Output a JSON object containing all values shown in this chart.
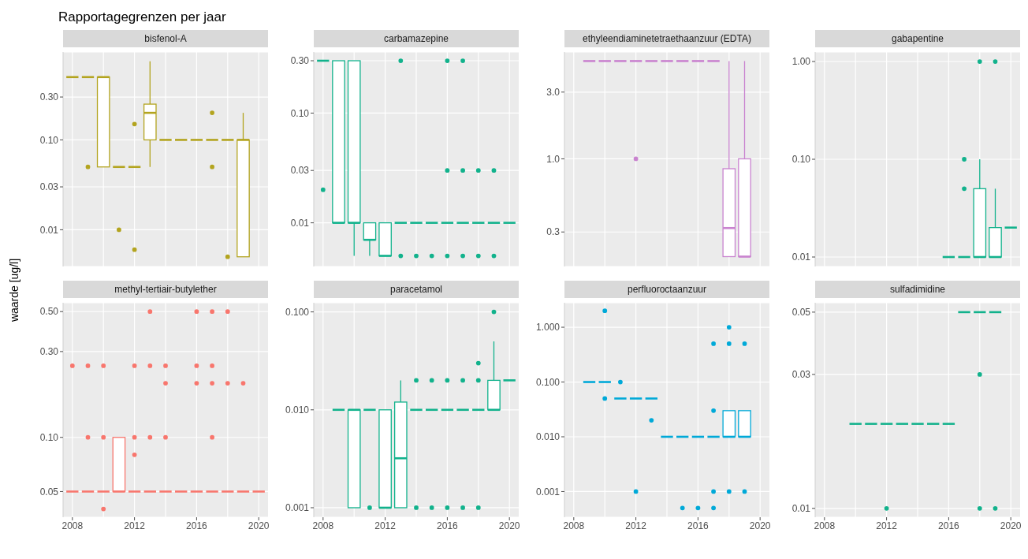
{
  "chart_data": [
    {
      "type": "box",
      "title": "bisfenol-A",
      "annotations": [
        "Rapportagegrenzen per jaar"
      ],
      "ylabel": "waarde [ug/l]",
      "color": "#b3a41f",
      "log": true,
      "grid": true,
      "tick_labels": "y",
      "ylim": [
        0.0039,
        0.95
      ],
      "yticks": [
        0.01,
        0.03,
        {
          "value": 0.1,
          "label": "0.10"
        },
        {
          "value": 0.3,
          "label": "0.30"
        }
      ],
      "categories": [
        "2008",
        null,
        null,
        null,
        "2012",
        null,
        null,
        null,
        "2016",
        null,
        null,
        null,
        "2020"
      ],
      "boxes": [
        {
          "low": 0.5,
          "q1": 0.5,
          "median": 0.5,
          "q3": 0.5,
          "high": 0.5
        },
        {
          "low": 0.5,
          "q1": 0.5,
          "median": 0.5,
          "q3": 0.5,
          "high": 0.5,
          "outliers": [
            0.05
          ]
        },
        {
          "low": 0.05,
          "q1": 0.05,
          "median": 0.5,
          "q3": 0.5,
          "high": 0.5
        },
        {
          "low": 0.05,
          "q1": 0.05,
          "median": 0.05,
          "q3": 0.05,
          "high": 0.05,
          "outliers": [
            0.01
          ]
        },
        {
          "low": 0.05,
          "q1": 0.05,
          "median": 0.05,
          "q3": 0.05,
          "high": 0.05,
          "outliers": [
            0.15,
            0.006
          ]
        },
        {
          "low": 0.05,
          "q1": 0.1,
          "median": 0.2,
          "q3": 0.25,
          "high": 0.75
        },
        {
          "low": 0.1,
          "q1": 0.1,
          "median": 0.1,
          "q3": 0.1,
          "high": 0.1
        },
        {
          "low": 0.1,
          "q1": 0.1,
          "median": 0.1,
          "q3": 0.1,
          "high": 0.1
        },
        {
          "low": 0.1,
          "q1": 0.1,
          "median": 0.1,
          "q3": 0.1,
          "high": 0.1
        },
        {
          "low": 0.1,
          "q1": 0.1,
          "median": 0.1,
          "q3": 0.1,
          "high": 0.1,
          "outliers": [
            0.2,
            0.05
          ]
        },
        {
          "low": 0.1,
          "q1": 0.1,
          "median": 0.1,
          "q3": 0.1,
          "high": 0.1,
          "outliers": [
            0.005
          ]
        },
        {
          "low": 0.005,
          "q1": 0.005,
          "median": 0.1,
          "q3": 0.1,
          "high": 0.2
        },
        null
      ]
    },
    {
      "type": "box",
      "title": "carbamazepine",
      "color": "#12b28c",
      "log": true,
      "grid": true,
      "tick_labels": "y",
      "ylim": [
        0.004,
        0.36
      ],
      "yticks": [
        0.01,
        0.03,
        {
          "value": 0.1,
          "label": "0.10"
        },
        {
          "value": 0.3,
          "label": "0.30"
        }
      ],
      "categories": [
        "2008",
        null,
        null,
        null,
        "2012",
        null,
        null,
        null,
        "2016",
        null,
        null,
        null,
        "2020"
      ],
      "boxes": [
        {
          "low": 0.3,
          "q1": 0.3,
          "median": 0.3,
          "q3": 0.3,
          "high": 0.3,
          "outliers": [
            0.02
          ]
        },
        {
          "low": 0.01,
          "q1": 0.01,
          "median": 0.01,
          "q3": 0.3,
          "high": 0.3
        },
        {
          "low": 0.005,
          "q1": 0.01,
          "median": 0.01,
          "q3": 0.3,
          "high": 0.3
        },
        {
          "low": 0.005,
          "q1": 0.007,
          "median": 0.007,
          "q3": 0.01,
          "high": 0.01
        },
        {
          "low": 0.005,
          "q1": 0.005,
          "median": 0.005,
          "q3": 0.01,
          "high": 0.01
        },
        {
          "low": 0.01,
          "q1": 0.01,
          "median": 0.01,
          "q3": 0.01,
          "high": 0.01,
          "outliers": [
            0.3,
            0.005
          ]
        },
        {
          "low": 0.01,
          "q1": 0.01,
          "median": 0.01,
          "q3": 0.01,
          "high": 0.01,
          "outliers": [
            0.005
          ]
        },
        {
          "low": 0.01,
          "q1": 0.01,
          "median": 0.01,
          "q3": 0.01,
          "high": 0.01,
          "outliers": [
            0.005
          ]
        },
        {
          "low": 0.01,
          "q1": 0.01,
          "median": 0.01,
          "q3": 0.01,
          "high": 0.01,
          "outliers": [
            0.3,
            0.03,
            0.005
          ]
        },
        {
          "low": 0.01,
          "q1": 0.01,
          "median": 0.01,
          "q3": 0.01,
          "high": 0.01,
          "outliers": [
            0.3,
            0.03,
            0.005
          ]
        },
        {
          "low": 0.01,
          "q1": 0.01,
          "median": 0.01,
          "q3": 0.01,
          "high": 0.01,
          "outliers": [
            0.03,
            0.005
          ]
        },
        {
          "low": 0.01,
          "q1": 0.01,
          "median": 0.01,
          "q3": 0.01,
          "high": 0.01,
          "outliers": [
            0.03,
            0.005
          ]
        },
        {
          "low": 0.01,
          "q1": 0.01,
          "median": 0.01,
          "q3": 0.01,
          "high": 0.01
        }
      ]
    },
    {
      "type": "box",
      "title": "ethyleendiaminetetraethaanzuur (EDTA)",
      "color": "#c983cf",
      "log": true,
      "grid": true,
      "tick_labels": "y",
      "ylim": [
        0.17,
        5.8
      ],
      "yticks": [
        0.3,
        {
          "value": 1,
          "label": "1.0"
        },
        {
          "value": 3,
          "label": "3.0"
        }
      ],
      "categories": [
        "2008",
        null,
        null,
        null,
        "2012",
        null,
        null,
        null,
        "2016",
        null,
        null,
        null,
        "2020"
      ],
      "boxes": [
        null,
        {
          "low": 5,
          "q1": 5,
          "median": 5,
          "q3": 5,
          "high": 5
        },
        {
          "low": 5,
          "q1": 5,
          "median": 5,
          "q3": 5,
          "high": 5
        },
        {
          "low": 5,
          "q1": 5,
          "median": 5,
          "q3": 5,
          "high": 5
        },
        {
          "low": 5,
          "q1": 5,
          "median": 5,
          "q3": 5,
          "high": 5,
          "outliers": [
            1
          ]
        },
        {
          "low": 5,
          "q1": 5,
          "median": 5,
          "q3": 5,
          "high": 5
        },
        {
          "low": 5,
          "q1": 5,
          "median": 5,
          "q3": 5,
          "high": 5
        },
        {
          "low": 5,
          "q1": 5,
          "median": 5,
          "q3": 5,
          "high": 5
        },
        {
          "low": 5,
          "q1": 5,
          "median": 5,
          "q3": 5,
          "high": 5
        },
        {
          "low": 5,
          "q1": 5,
          "median": 5,
          "q3": 5,
          "high": 5
        },
        {
          "low": 0.2,
          "q1": 0.2,
          "median": 0.32,
          "q3": 0.85,
          "high": 5
        },
        {
          "low": 0.2,
          "q1": 0.2,
          "median": 0.2,
          "q3": 1,
          "high": 5
        },
        null
      ]
    },
    {
      "type": "box",
      "title": "gabapentine",
      "color": "#12b28c",
      "log": true,
      "grid": true,
      "tick_labels": "y",
      "ylim": [
        0.008,
        1.25
      ],
      "yticks": [
        0.01,
        {
          "value": 0.1,
          "label": "0.10"
        },
        {
          "value": 1,
          "label": "1.00"
        }
      ],
      "categories": [
        "2008",
        null,
        null,
        null,
        "2012",
        null,
        null,
        null,
        "2016",
        null,
        null,
        null,
        "2020"
      ],
      "boxes": [
        null,
        null,
        null,
        null,
        null,
        null,
        null,
        null,
        {
          "low": 0.01,
          "q1": 0.01,
          "median": 0.01,
          "q3": 0.01,
          "high": 0.01
        },
        {
          "low": 0.01,
          "q1": 0.01,
          "median": 0.01,
          "q3": 0.01,
          "high": 0.01,
          "outliers": [
            0.1,
            0.05
          ]
        },
        {
          "low": 0.01,
          "q1": 0.01,
          "median": 0.01,
          "q3": 0.05,
          "high": 0.1,
          "outliers": [
            1
          ]
        },
        {
          "low": 0.01,
          "q1": 0.01,
          "median": 0.01,
          "q3": 0.02,
          "high": 0.05,
          "outliers": [
            1
          ]
        },
        {
          "low": 0.02,
          "q1": 0.02,
          "median": 0.02,
          "q3": 0.02,
          "high": 0.02
        }
      ]
    },
    {
      "type": "box",
      "title": "methyl-tertiair-butylether",
      "color": "#f8766d",
      "log": true,
      "grid": true,
      "ylim": [
        0.036,
        0.56
      ],
      "yticks": [
        0.05,
        {
          "value": 0.1,
          "label": "0.10"
        },
        {
          "value": 0.3,
          "label": "0.30"
        },
        {
          "value": 0.5,
          "label": "0.50"
        }
      ],
      "categories": [
        "2008",
        null,
        null,
        null,
        "2012",
        null,
        null,
        null,
        "2016",
        null,
        null,
        null,
        "2020"
      ],
      "boxes": [
        {
          "low": 0.05,
          "q1": 0.05,
          "median": 0.05,
          "q3": 0.05,
          "high": 0.05,
          "outliers": [
            0.25
          ]
        },
        {
          "low": 0.05,
          "q1": 0.05,
          "median": 0.05,
          "q3": 0.05,
          "high": 0.05,
          "outliers": [
            0.25,
            0.1
          ]
        },
        {
          "low": 0.05,
          "q1": 0.05,
          "median": 0.05,
          "q3": 0.05,
          "high": 0.05,
          "outliers": [
            0.25,
            0.1,
            0.04
          ]
        },
        {
          "low": 0.05,
          "q1": 0.05,
          "median": 0.05,
          "q3": 0.1,
          "high": 0.1
        },
        {
          "low": 0.05,
          "q1": 0.05,
          "median": 0.05,
          "q3": 0.05,
          "high": 0.05,
          "outliers": [
            0.25,
            0.1,
            0.08
          ]
        },
        {
          "low": 0.05,
          "q1": 0.05,
          "median": 0.05,
          "q3": 0.05,
          "high": 0.05,
          "outliers": [
            0.5,
            0.25,
            0.1
          ]
        },
        {
          "low": 0.05,
          "q1": 0.05,
          "median": 0.05,
          "q3": 0.05,
          "high": 0.05,
          "outliers": [
            0.25,
            0.2,
            0.1
          ]
        },
        {
          "low": 0.05,
          "q1": 0.05,
          "median": 0.05,
          "q3": 0.05,
          "high": 0.05
        },
        {
          "low": 0.05,
          "q1": 0.05,
          "median": 0.05,
          "q3": 0.05,
          "high": 0.05,
          "outliers": [
            0.5,
            0.25,
            0.2
          ]
        },
        {
          "low": 0.05,
          "q1": 0.05,
          "median": 0.05,
          "q3": 0.05,
          "high": 0.05,
          "outliers": [
            0.5,
            0.25,
            0.2,
            0.1
          ]
        },
        {
          "low": 0.05,
          "q1": 0.05,
          "median": 0.05,
          "q3": 0.05,
          "high": 0.05,
          "outliers": [
            0.5,
            0.2
          ]
        },
        {
          "low": 0.05,
          "q1": 0.05,
          "median": 0.05,
          "q3": 0.05,
          "high": 0.05,
          "outliers": [
            0.2
          ]
        },
        {
          "low": 0.05,
          "q1": 0.05,
          "median": 0.05,
          "q3": 0.05,
          "high": 0.05
        }
      ]
    },
    {
      "type": "box",
      "title": "paracetamol",
      "color": "#12b28c",
      "log": true,
      "grid": true,
      "ylim": [
        0.0008,
        0.124
      ],
      "yticks": [
        {
          "value": 0.001,
          "label": "0.001"
        },
        {
          "value": 0.01,
          "label": "0.010"
        },
        {
          "value": 0.1,
          "label": "0.100"
        }
      ],
      "categories": [
        "2008",
        null,
        null,
        null,
        "2012",
        null,
        null,
        null,
        "2016",
        null,
        null,
        null,
        "2020"
      ],
      "boxes": [
        null,
        {
          "low": 0.01,
          "q1": 0.01,
          "median": 0.01,
          "q3": 0.01,
          "high": 0.01
        },
        {
          "low": 0.001,
          "q1": 0.001,
          "median": 0.01,
          "q3": 0.01,
          "high": 0.01
        },
        {
          "low": 0.01,
          "q1": 0.01,
          "median": 0.01,
          "q3": 0.01,
          "high": 0.01,
          "outliers": [
            0.001
          ]
        },
        {
          "low": 0.001,
          "q1": 0.001,
          "median": 0.001,
          "q3": 0.01,
          "high": 0.01
        },
        {
          "low": 0.001,
          "q1": 0.001,
          "median": 0.0032,
          "q3": 0.012,
          "high": 0.02
        },
        {
          "low": 0.01,
          "q1": 0.01,
          "median": 0.01,
          "q3": 0.01,
          "high": 0.01,
          "outliers": [
            0.02,
            0.001
          ]
        },
        {
          "low": 0.01,
          "q1": 0.01,
          "median": 0.01,
          "q3": 0.01,
          "high": 0.01,
          "outliers": [
            0.02,
            0.001
          ]
        },
        {
          "low": 0.01,
          "q1": 0.01,
          "median": 0.01,
          "q3": 0.01,
          "high": 0.01,
          "outliers": [
            0.02,
            0.001
          ]
        },
        {
          "low": 0.01,
          "q1": 0.01,
          "median": 0.01,
          "q3": 0.01,
          "high": 0.01,
          "outliers": [
            0.02,
            0.001
          ]
        },
        {
          "low": 0.01,
          "q1": 0.01,
          "median": 0.01,
          "q3": 0.01,
          "high": 0.01,
          "outliers": [
            0.03,
            0.02,
            0.001
          ]
        },
        {
          "low": 0.01,
          "q1": 0.01,
          "median": 0.01,
          "q3": 0.02,
          "high": 0.05,
          "outliers": [
            0.1
          ]
        },
        {
          "low": 0.02,
          "q1": 0.02,
          "median": 0.02,
          "q3": 0.02,
          "high": 0.02
        }
      ]
    },
    {
      "type": "box",
      "title": "perfluoroctaanzuur",
      "color": "#00a9d8",
      "log": true,
      "grid": true,
      "ylim": [
        0.00034,
        2.8
      ],
      "yticks": [
        {
          "value": 0.001,
          "label": "0.001"
        },
        {
          "value": 0.01,
          "label": "0.010"
        },
        {
          "value": 0.1,
          "label": "0.100"
        },
        {
          "value": 1,
          "label": "1.000"
        }
      ],
      "categories": [
        "2008",
        null,
        null,
        null,
        "2012",
        null,
        null,
        null,
        "2016",
        null,
        null,
        null,
        "2020"
      ],
      "boxes": [
        null,
        {
          "low": 0.1,
          "q1": 0.1,
          "median": 0.1,
          "q3": 0.1,
          "high": 0.1
        },
        {
          "low": 0.1,
          "q1": 0.1,
          "median": 0.1,
          "q3": 0.1,
          "high": 0.1,
          "outliers": [
            2,
            0.05
          ]
        },
        {
          "low": 0.05,
          "q1": 0.05,
          "median": 0.05,
          "q3": 0.05,
          "high": 0.05,
          "outliers": [
            0.1
          ]
        },
        {
          "low": 0.05,
          "q1": 0.05,
          "median": 0.05,
          "q3": 0.05,
          "high": 0.05,
          "outliers": [
            0.001
          ]
        },
        {
          "low": 0.05,
          "q1": 0.05,
          "median": 0.05,
          "q3": 0.05,
          "high": 0.05,
          "outliers": [
            0.02
          ]
        },
        {
          "low": 0.01,
          "q1": 0.01,
          "median": 0.01,
          "q3": 0.01,
          "high": 0.01
        },
        {
          "low": 0.01,
          "q1": 0.01,
          "median": 0.01,
          "q3": 0.01,
          "high": 0.01,
          "outliers": [
            0.0005
          ]
        },
        {
          "low": 0.01,
          "q1": 0.01,
          "median": 0.01,
          "q3": 0.01,
          "high": 0.01,
          "outliers": [
            0.0005
          ]
        },
        {
          "low": 0.01,
          "q1": 0.01,
          "median": 0.01,
          "q3": 0.01,
          "high": 0.01,
          "outliers": [
            0.5,
            0.03,
            0.001,
            0.0005
          ]
        },
        {
          "low": 0.01,
          "q1": 0.01,
          "median": 0.01,
          "q3": 0.03,
          "high": 0.03,
          "outliers": [
            1,
            0.5,
            0.001
          ]
        },
        {
          "low": 0.01,
          "q1": 0.01,
          "median": 0.01,
          "q3": 0.03,
          "high": 0.03,
          "outliers": [
            0.5,
            0.001
          ]
        },
        null
      ]
    },
    {
      "type": "box",
      "title": "sulfadimidine",
      "color": "#12b28c",
      "log": true,
      "grid": true,
      "ylim": [
        0.0093,
        0.054
      ],
      "yticks": [
        0.01,
        0.03,
        0.05
      ],
      "categories": [
        "2008",
        null,
        null,
        null,
        "2012",
        null,
        null,
        null,
        "2016",
        null,
        null,
        null,
        "2020"
      ],
      "boxes": [
        null,
        null,
        {
          "low": 0.02,
          "q1": 0.02,
          "median": 0.02,
          "q3": 0.02,
          "high": 0.02
        },
        {
          "low": 0.02,
          "q1": 0.02,
          "median": 0.02,
          "q3": 0.02,
          "high": 0.02
        },
        {
          "low": 0.02,
          "q1": 0.02,
          "median": 0.02,
          "q3": 0.02,
          "high": 0.02,
          "outliers": [
            0.01
          ]
        },
        {
          "low": 0.02,
          "q1": 0.02,
          "median": 0.02,
          "q3": 0.02,
          "high": 0.02
        },
        {
          "low": 0.02,
          "q1": 0.02,
          "median": 0.02,
          "q3": 0.02,
          "high": 0.02
        },
        {
          "low": 0.02,
          "q1": 0.02,
          "median": 0.02,
          "q3": 0.02,
          "high": 0.02
        },
        {
          "low": 0.02,
          "q1": 0.02,
          "median": 0.02,
          "q3": 0.02,
          "high": 0.02
        },
        {
          "low": 0.05,
          "q1": 0.05,
          "median": 0.05,
          "q3": 0.05,
          "high": 0.05
        },
        {
          "low": 0.05,
          "q1": 0.05,
          "median": 0.05,
          "q3": 0.05,
          "high": 0.05,
          "outliers": [
            0.03,
            0.01
          ]
        },
        {
          "low": 0.05,
          "q1": 0.05,
          "median": 0.05,
          "q3": 0.05,
          "high": 0.05,
          "outliers": [
            0.01
          ]
        },
        null
      ]
    }
  ]
}
